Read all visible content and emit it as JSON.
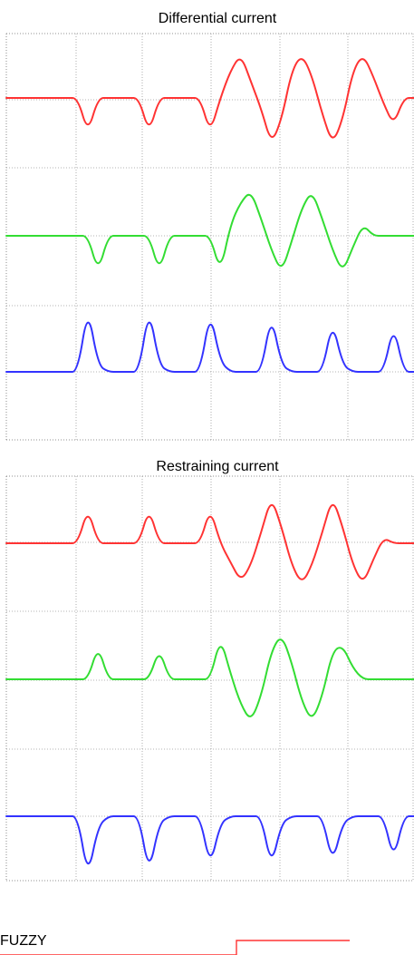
{
  "chart_data": [
    {
      "type": "line",
      "title": "Differential current",
      "series": [
        {
          "color": "#ff3333",
          "x": [
            0,
            1,
            2,
            3,
            4,
            5,
            6,
            7,
            8,
            9,
            10,
            11,
            12,
            13,
            14,
            15,
            16,
            17,
            18,
            19,
            20,
            21,
            22,
            23,
            24,
            25,
            26,
            27,
            28,
            29,
            30,
            31,
            32,
            33,
            34,
            35,
            36,
            37,
            38,
            39,
            40
          ],
          "values": [
            0.0,
            0.0,
            0.0,
            0.0,
            0.0,
            0.0,
            0.0,
            0.0,
            -0.65,
            0.0,
            0.0,
            0.0,
            0.0,
            0.0,
            -0.65,
            0.0,
            0.0,
            0.0,
            0.0,
            0.0,
            -0.65,
            0.0,
            0.5,
            0.8,
            0.3,
            -0.2,
            -0.85,
            -0.4,
            0.5,
            0.8,
            0.4,
            -0.3,
            -0.85,
            -0.4,
            0.5,
            0.8,
            0.4,
            -0.1,
            -0.5,
            0.0,
            0.0
          ],
          "ylim": [
            -1,
            1
          ]
        },
        {
          "color": "#33dd33",
          "x": [
            0,
            1,
            2,
            3,
            4,
            5,
            6,
            7,
            8,
            9,
            10,
            11,
            12,
            13,
            14,
            15,
            16,
            17,
            18,
            19,
            20,
            21,
            22,
            23,
            24,
            25,
            26,
            27,
            28,
            29,
            30,
            31,
            32,
            33,
            34,
            35,
            36,
            37,
            38,
            39,
            40
          ],
          "values": [
            0.0,
            0.0,
            0.0,
            0.0,
            0.0,
            0.0,
            0.0,
            0.0,
            0.0,
            -0.65,
            0.0,
            0.0,
            0.0,
            0.0,
            0.0,
            -0.65,
            0.0,
            0.0,
            0.0,
            0.0,
            0.0,
            -0.65,
            0.2,
            0.6,
            0.8,
            0.3,
            -0.25,
            -0.65,
            -0.1,
            0.5,
            0.8,
            0.3,
            -0.25,
            -0.65,
            -0.2,
            0.2,
            0.0,
            0.0,
            0.0,
            0.0,
            0.0
          ],
          "ylim": [
            -1,
            1
          ]
        },
        {
          "color": "#3333ff",
          "x": [
            0,
            1,
            2,
            3,
            4,
            5,
            6,
            7,
            8,
            9,
            10,
            11,
            12,
            13,
            14,
            15,
            16,
            17,
            18,
            19,
            20,
            21,
            22,
            23,
            24,
            25,
            26,
            27,
            28,
            29,
            30,
            31,
            32,
            33,
            34,
            35,
            36,
            37,
            38,
            39,
            40
          ],
          "values": [
            0.0,
            0.0,
            0.0,
            0.0,
            0.0,
            0.0,
            0.0,
            0.0,
            0.95,
            0.1,
            0.0,
            0.0,
            0.0,
            0.0,
            0.95,
            0.1,
            0.0,
            0.0,
            0.0,
            0.0,
            0.9,
            0.15,
            0.0,
            0.0,
            0.0,
            0.0,
            0.85,
            0.1,
            0.0,
            0.0,
            0.0,
            0.0,
            0.75,
            0.1,
            0.0,
            0.0,
            0.0,
            0.0,
            0.7,
            0.0,
            0.0
          ],
          "ylim": [
            -1,
            1
          ]
        }
      ]
    },
    {
      "type": "line",
      "title": "Restraining current",
      "series": [
        {
          "color": "#ff3333",
          "x": [
            0,
            1,
            2,
            3,
            4,
            5,
            6,
            7,
            8,
            9,
            10,
            11,
            12,
            13,
            14,
            15,
            16,
            17,
            18,
            19,
            20,
            21,
            22,
            23,
            24,
            25,
            26,
            27,
            28,
            29,
            30,
            31,
            32,
            33,
            34,
            35,
            36,
            37,
            38,
            39,
            40
          ],
          "values": [
            0.0,
            0.0,
            0.0,
            0.0,
            0.0,
            0.0,
            0.0,
            0.0,
            0.65,
            0.0,
            0.0,
            0.0,
            0.0,
            0.0,
            0.65,
            0.0,
            0.0,
            0.0,
            0.0,
            0.0,
            0.65,
            0.0,
            -0.35,
            -0.7,
            -0.4,
            0.2,
            0.85,
            0.3,
            -0.4,
            -0.75,
            -0.4,
            0.2,
            0.85,
            0.3,
            -0.4,
            -0.75,
            -0.3,
            0.1,
            0.0,
            0.0,
            0.0
          ],
          "ylim": [
            -1,
            1
          ]
        },
        {
          "color": "#33dd33",
          "x": [
            0,
            1,
            2,
            3,
            4,
            5,
            6,
            7,
            8,
            9,
            10,
            11,
            12,
            13,
            14,
            15,
            16,
            17,
            18,
            19,
            20,
            21,
            22,
            23,
            24,
            25,
            26,
            27,
            28,
            29,
            30,
            31,
            32,
            33,
            34,
            35,
            36,
            37,
            38,
            39,
            40
          ],
          "values": [
            0.0,
            0.0,
            0.0,
            0.0,
            0.0,
            0.0,
            0.0,
            0.0,
            0.0,
            0.6,
            0.0,
            0.0,
            0.0,
            0.0,
            0.0,
            0.55,
            0.0,
            0.0,
            0.0,
            0.0,
            0.0,
            0.75,
            0.1,
            -0.45,
            -0.75,
            -0.3,
            0.5,
            0.8,
            0.3,
            -0.4,
            -0.75,
            -0.3,
            0.5,
            0.6,
            0.2,
            0.0,
            0.0,
            0.0,
            0.0,
            0.0,
            0.0
          ],
          "ylim": [
            -1,
            1
          ]
        },
        {
          "color": "#3333ff",
          "x": [
            0,
            1,
            2,
            3,
            4,
            5,
            6,
            7,
            8,
            9,
            10,
            11,
            12,
            13,
            14,
            15,
            16,
            17,
            18,
            19,
            20,
            21,
            22,
            23,
            24,
            25,
            26,
            27,
            28,
            29,
            30,
            31,
            32,
            33,
            34,
            35,
            36,
            37,
            38,
            39,
            40
          ],
          "values": [
            0.0,
            0.0,
            0.0,
            0.0,
            0.0,
            0.0,
            0.0,
            0.0,
            -0.9,
            -0.15,
            0.0,
            0.0,
            0.0,
            0.0,
            -0.85,
            -0.1,
            0.0,
            0.0,
            0.0,
            0.0,
            -0.75,
            -0.1,
            0.0,
            0.0,
            0.0,
            0.0,
            -0.75,
            -0.1,
            0.0,
            0.0,
            0.0,
            0.0,
            -0.7,
            -0.1,
            0.0,
            0.0,
            0.0,
            0.0,
            -0.65,
            0.0,
            0.0
          ],
          "ylim": [
            -1,
            1
          ]
        }
      ]
    }
  ],
  "labels": {
    "fuzzy": "FUZZY"
  },
  "colors": {
    "red": "#ff3333",
    "green": "#33dd33",
    "blue": "#3333ff",
    "grid": "#9a9a9a"
  }
}
